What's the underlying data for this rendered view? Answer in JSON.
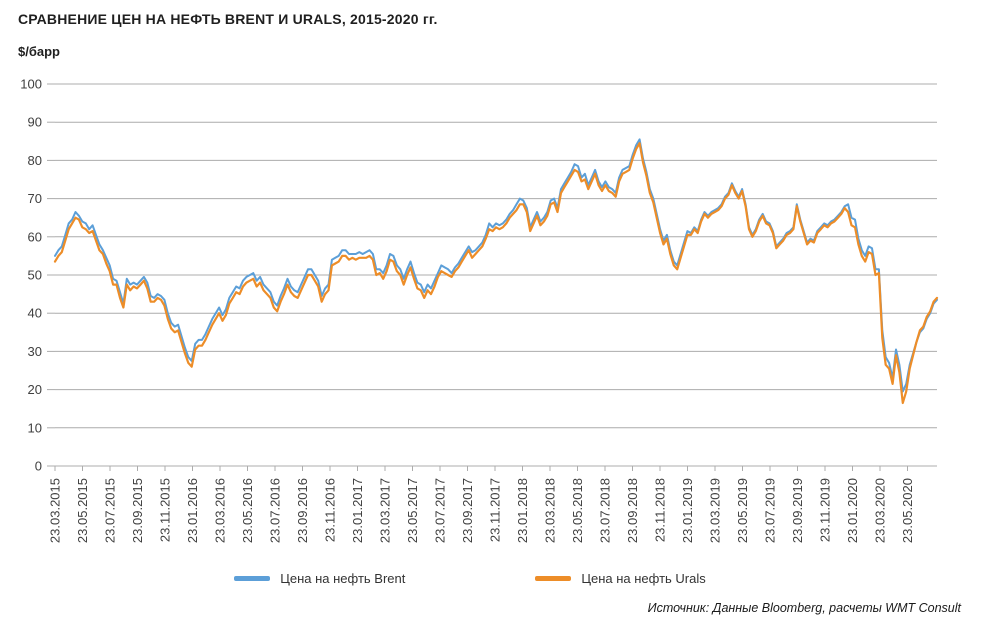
{
  "header": {
    "title": "СРАВНЕНИЕ ЦЕН НА НЕФТЬ BRENT И URALS, 2015-2020 гг.",
    "unit": "$/барр"
  },
  "footer": {
    "source_text": "Источник: Данные Bloomberg, расчеты WMT Consult"
  },
  "colors": {
    "brent": "#5C9FD8",
    "urals": "#ED8D28",
    "grid": "#ACACAC",
    "axis_text": "#404040"
  },
  "chart_data": {
    "type": "line",
    "title": "СРАВНЕНИЕ ЦЕН НА НЕФТЬ BRENT И URALS, 2015-2020 гг.",
    "ylabel": "$/барр",
    "ylim": [
      0,
      100
    ],
    "y_ticks": [
      0,
      10,
      20,
      30,
      40,
      50,
      60,
      70,
      80,
      90,
      100
    ],
    "grid": "horizontal",
    "legend_position": "bottom",
    "x_tick_labels": [
      "23.03.2015",
      "23.05.2015",
      "23.07.2015",
      "23.09.2015",
      "23.11.2015",
      "23.01.2016",
      "23.03.2016",
      "23.05.2016",
      "23.07.2016",
      "23.09.2016",
      "23.11.2016",
      "23.01.2017",
      "23.03.2017",
      "23.05.2017",
      "23.07.2017",
      "23.09.2017",
      "23.11.2017",
      "23.01.2018",
      "23.03.2018",
      "23.05.2018",
      "23.07.2018",
      "23.09.2018",
      "23.11.2018",
      "23.01.2019",
      "23.03.2019",
      "23.05.2019",
      "23.07.2019",
      "23.09.2019",
      "23.11.2019",
      "23.01.2020",
      "23.03.2020",
      "23.05.2020"
    ],
    "x_unit": "weekly samples from 23.03.2015 to mid-June 2020",
    "series": [
      {
        "name": "Цена на нефть Brent",
        "color": "#5C9FD8",
        "values": [
          55,
          56.5,
          57.5,
          60.5,
          63.5,
          64.5,
          66.5,
          65.5,
          64,
          63.5,
          62,
          63,
          60.5,
          58,
          56.5,
          54.5,
          52.5,
          49,
          48.5,
          45.5,
          42.5,
          49,
          47.5,
          48,
          47.5,
          48.5,
          49.5,
          48,
          44.5,
          44,
          45,
          44.5,
          43.5,
          40,
          37.5,
          36.5,
          37,
          34,
          31,
          28.5,
          27.5,
          32,
          33,
          33,
          34.5,
          36.5,
          38.5,
          40,
          41.5,
          39.5,
          41,
          44,
          45.5,
          47,
          46.5,
          48.5,
          49.5,
          50,
          50.5,
          48.5,
          49.5,
          47.5,
          46.5,
          45.5,
          43,
          42,
          44.5,
          46.5,
          49,
          47,
          46,
          45.5,
          47.5,
          49.5,
          51.5,
          51.5,
          50,
          48.5,
          44.5,
          46.5,
          47.5,
          54,
          54.5,
          55,
          56.5,
          56.5,
          55.5,
          55.5,
          55.5,
          56,
          55.5,
          56,
          56.5,
          55.5,
          51.5,
          51.5,
          50.5,
          52.5,
          55.5,
          55,
          52.5,
          51.5,
          49,
          51.5,
          53.5,
          50.5,
          48,
          47.5,
          45.5,
          47.5,
          46.5,
          48.5,
          50.5,
          52.5,
          52,
          51.5,
          50.5,
          52,
          53,
          54.5,
          56,
          57.5,
          56,
          56.5,
          57.5,
          58.5,
          60.5,
          63.5,
          62.5,
          63.5,
          63,
          63.5,
          64.5,
          66,
          67,
          68.5,
          70,
          69.5,
          67.5,
          62.5,
          64.5,
          66.5,
          64,
          65,
          66.5,
          69.5,
          70,
          67.5,
          72.5,
          74,
          75.5,
          77,
          79,
          78.5,
          75.5,
          76.5,
          73.5,
          75.5,
          77.5,
          74.5,
          73,
          74.5,
          73,
          72.5,
          71.5,
          75.5,
          77.5,
          78,
          78.5,
          81.5,
          84,
          85.5,
          80.5,
          77,
          72.5,
          70,
          66,
          62,
          59,
          60.5,
          56.5,
          53.5,
          52.5,
          55.5,
          58.5,
          61.5,
          61,
          62.5,
          61.5,
          64.5,
          66.5,
          65.5,
          66.5,
          67,
          67.5,
          68.5,
          70.5,
          71.5,
          74,
          72,
          70.5,
          72.5,
          68.5,
          62.5,
          60.5,
          62,
          64.5,
          66,
          64,
          63.5,
          61.5,
          57.5,
          58.5,
          59.5,
          61,
          61.5,
          62.5,
          68.5,
          64.5,
          61.5,
          58.5,
          59.5,
          59,
          61.5,
          62.5,
          63.5,
          63,
          64,
          64.5,
          65.5,
          66.5,
          68,
          68.5,
          65,
          64.5,
          59.5,
          56.5,
          55,
          57.5,
          57,
          51.5,
          51.5,
          35.5,
          28.5,
          27,
          23,
          30.5,
          26.5,
          19.5,
          21.5,
          26.5,
          29.5,
          32.5,
          35,
          36,
          38.5,
          40,
          42.5,
          43.5
        ]
      },
      {
        "name": "Цена на нефть Urals",
        "color": "#ED8D28",
        "values": [
          53.5,
          55,
          56,
          59,
          62,
          63.5,
          65,
          64.5,
          62.5,
          62,
          61,
          61.5,
          59,
          56.5,
          55.5,
          53,
          51,
          47.5,
          47.5,
          44,
          41.5,
          47.5,
          46,
          47,
          46.5,
          47.5,
          48.5,
          46.5,
          43,
          43,
          44,
          43.5,
          42,
          38.5,
          36,
          35,
          35.5,
          32.5,
          29.5,
          27,
          26,
          30.5,
          31.5,
          31.5,
          33,
          35,
          37,
          38.5,
          40,
          38,
          39.5,
          42.5,
          44,
          45.5,
          45,
          47,
          48,
          48.5,
          49,
          47,
          48,
          46,
          45,
          44,
          41.5,
          40.5,
          43,
          45,
          47.5,
          45.5,
          44.5,
          44,
          46,
          48,
          50,
          50,
          48.5,
          47,
          43,
          45,
          46,
          52.5,
          53,
          53.5,
          55,
          55,
          54,
          54.5,
          54,
          54.5,
          54.5,
          54.5,
          55,
          54,
          50,
          50.5,
          49,
          51,
          54,
          53.5,
          51,
          50,
          47.5,
          50,
          52,
          49,
          46.5,
          46,
          44,
          46,
          45,
          47,
          49.5,
          51,
          50.5,
          50,
          49.5,
          51,
          52,
          53.5,
          55,
          56.5,
          54.5,
          55.5,
          56.5,
          57.5,
          59.5,
          62,
          61.5,
          62.5,
          62,
          62.5,
          63.5,
          65,
          66,
          67,
          68.5,
          68.5,
          66.5,
          61.5,
          63.5,
          65.5,
          63,
          64,
          65.5,
          68.5,
          69,
          66.5,
          71.5,
          73,
          74.5,
          76,
          77.5,
          77,
          74.5,
          75,
          72.5,
          74.5,
          76.5,
          73.5,
          72,
          73.5,
          72,
          71.5,
          70.5,
          74.5,
          76.5,
          77,
          77.5,
          80.5,
          83,
          84.5,
          79.5,
          76,
          71.5,
          69,
          65,
          61,
          58,
          59.5,
          55.5,
          52.5,
          51.5,
          54.5,
          57.5,
          60.5,
          60.5,
          62,
          61,
          64,
          66,
          65,
          66,
          66.5,
          67,
          68,
          70,
          71,
          73.5,
          71.5,
          70,
          72,
          68,
          62,
          60,
          61.5,
          64,
          65.5,
          63.5,
          63,
          61,
          57,
          58,
          59,
          60.5,
          61,
          62,
          68,
          64,
          61,
          58,
          59,
          58.5,
          61,
          62,
          63,
          62.5,
          63.5,
          64,
          65,
          66,
          67.5,
          66.5,
          63,
          62.5,
          58,
          55,
          53.5,
          56,
          55.5,
          50,
          50.5,
          33.5,
          26.5,
          25.5,
          21.5,
          29,
          24.5,
          16.5,
          19.5,
          25.5,
          29,
          32.5,
          35.5,
          36.5,
          39,
          40.5,
          43,
          44
        ]
      }
    ]
  }
}
